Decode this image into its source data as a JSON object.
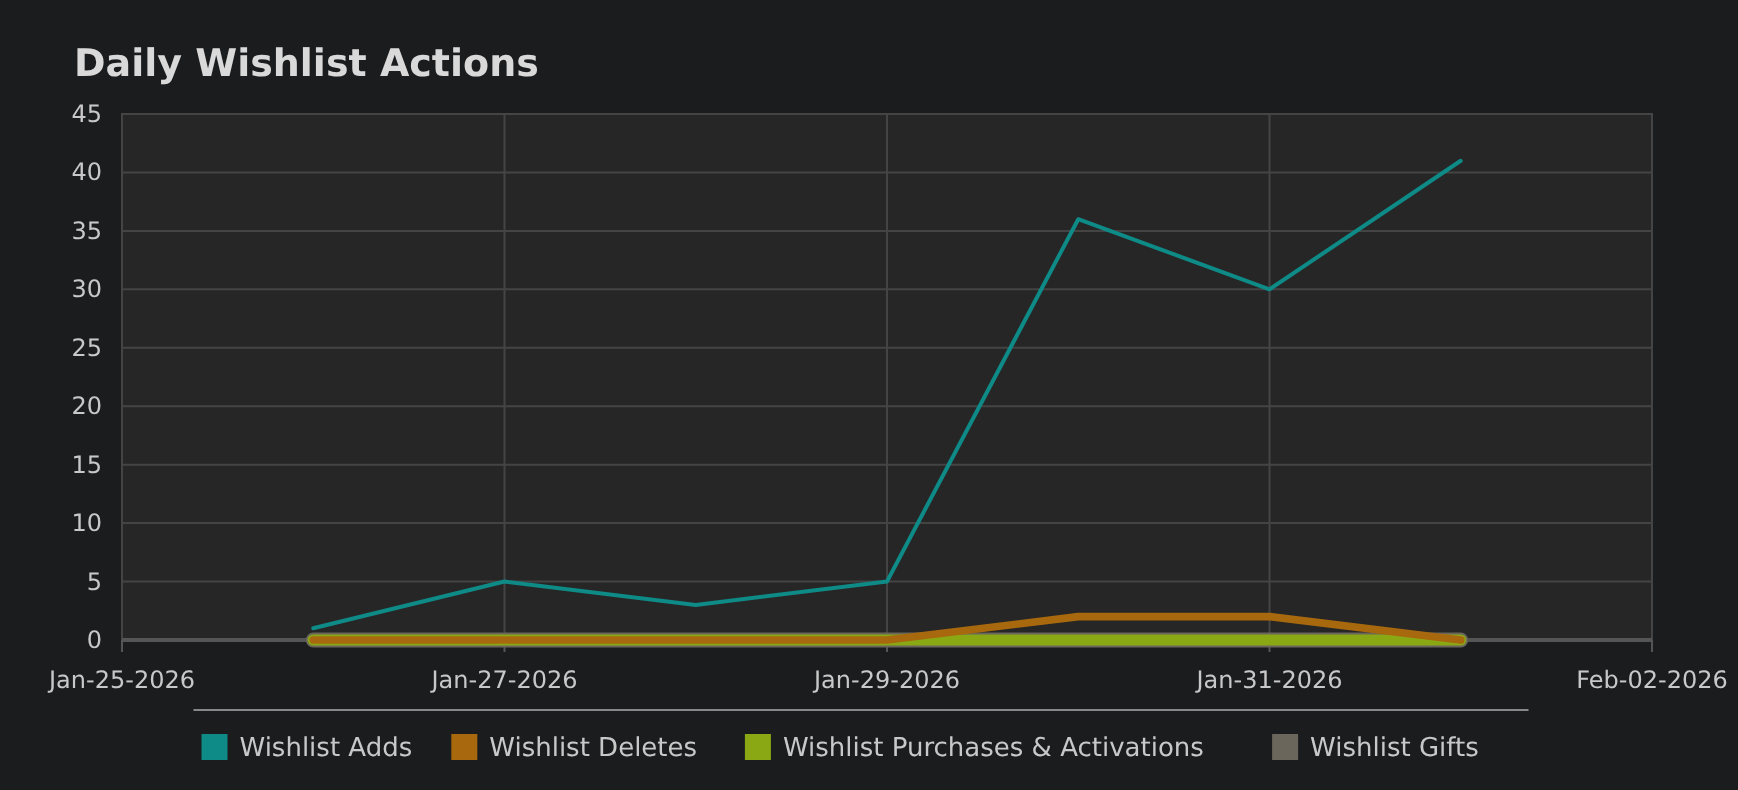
{
  "chart_data": {
    "type": "line",
    "title": "Daily Wishlist Actions",
    "x": [
      "2026-01-26",
      "2026-01-27",
      "2026-01-28",
      "2026-01-29",
      "2026-01-30",
      "2026-01-31",
      "2026-02-01"
    ],
    "series": [
      {
        "name": "Wishlist Adds",
        "color": "#0e8a87",
        "values": [
          1,
          5,
          3,
          5,
          36,
          30,
          41
        ]
      },
      {
        "name": "Wishlist Deletes",
        "color": "#a8690e",
        "values": [
          0,
          0,
          0,
          0,
          2,
          2,
          0
        ]
      },
      {
        "name": "Wishlist Purchases & Activations",
        "color": "#8aa814",
        "values": [
          0,
          0,
          0,
          0,
          0,
          0,
          0
        ]
      },
      {
        "name": "Wishlist Gifts",
        "color": "#6b665c",
        "values": [
          0,
          0,
          0,
          0,
          0,
          0,
          0
        ]
      }
    ],
    "xlim": [
      "2026-01-25",
      "2026-02-02"
    ],
    "xticks": [
      {
        "value": "2026-01-25",
        "label": "Jan-25-2026"
      },
      {
        "value": "2026-01-27",
        "label": "Jan-27-2026"
      },
      {
        "value": "2026-01-29",
        "label": "Jan-29-2026"
      },
      {
        "value": "2026-01-31",
        "label": "Jan-31-2026"
      },
      {
        "value": "2026-02-02",
        "label": "Feb-02-2026"
      }
    ],
    "ylim": [
      0,
      45
    ],
    "yticks": [
      0,
      5,
      10,
      15,
      20,
      25,
      30,
      35,
      40,
      45
    ],
    "grid": true,
    "legend": "bottom",
    "marker": "none",
    "line_style": "solid"
  }
}
